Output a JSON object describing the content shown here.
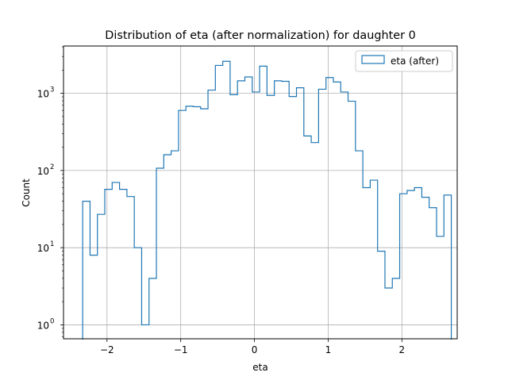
{
  "chart_data": {
    "type": "histogram",
    "title": "Distribution of eta (after normalization) for daughter 0",
    "xlabel": "eta",
    "ylabel": "Count",
    "xlim": [
      -2.59,
      2.75
    ],
    "ylim": [
      0.66,
      4100
    ],
    "yscale": "log",
    "grid": true,
    "legend_position": "top-right",
    "colors": {
      "series": "#1f77b4",
      "grid": "#b0b0b0"
    },
    "x_ticks": [
      {
        "value": -2,
        "label": "−2"
      },
      {
        "value": -1,
        "label": "−1"
      },
      {
        "value": 0,
        "label": "0"
      },
      {
        "value": 1,
        "label": "1"
      },
      {
        "value": 2,
        "label": "2"
      }
    ],
    "y_ticks": [
      {
        "value": 1,
        "label": "10",
        "exp": "0"
      },
      {
        "value": 10,
        "label": "10",
        "exp": "1"
      },
      {
        "value": 100,
        "label": "10",
        "exp": "2"
      },
      {
        "value": 1000,
        "label": "10",
        "exp": "3"
      }
    ],
    "bin_start": -2.33,
    "bin_width": 0.1,
    "counts": [
      40,
      8,
      27,
      57,
      70,
      57,
      46,
      10,
      1,
      4,
      107,
      160,
      180,
      600,
      680,
      670,
      630,
      1100,
      2300,
      2600,
      960,
      1450,
      1630,
      1040,
      2250,
      940,
      1450,
      1430,
      910,
      1180,
      280,
      230,
      1130,
      1600,
      1400,
      1040,
      790,
      180,
      60,
      75,
      9,
      3,
      4,
      50,
      55,
      60,
      45,
      33,
      14,
      48
    ],
    "series": [
      {
        "name": "eta (after)",
        "color": "#1f77b4"
      }
    ]
  }
}
